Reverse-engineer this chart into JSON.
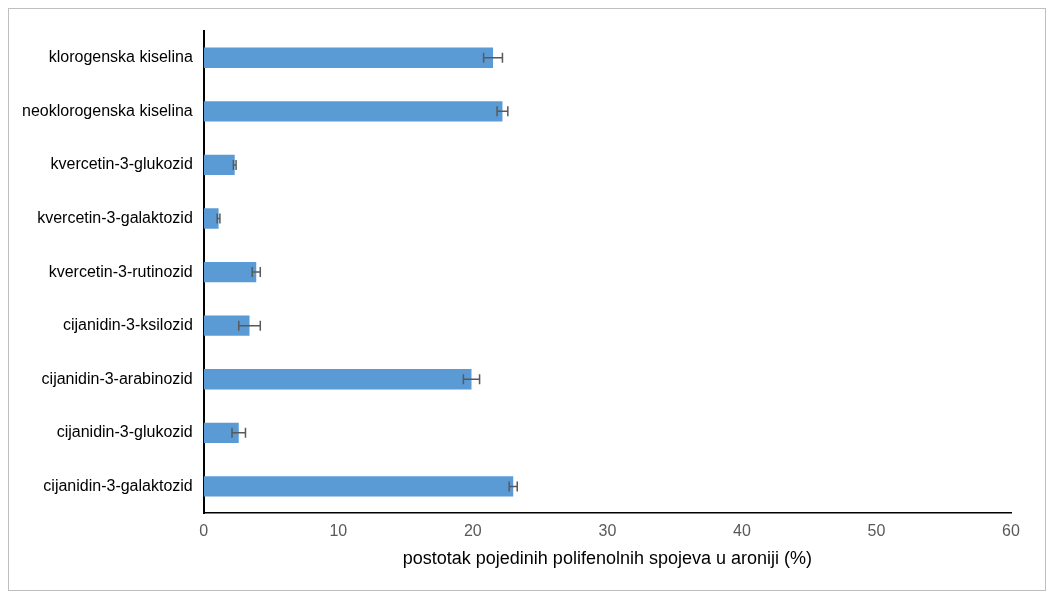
{
  "chart_data": {
    "type": "bar",
    "orientation": "horizontal",
    "xlabel": "postotak pojedinih polifenolnih spojeva u aroniji (%)",
    "categories": [
      "klorogenska kiselina",
      "neoklorogenska kiselina",
      "kvercetin-3-glukozid",
      "kvercetin-3-galaktozid",
      "kvercetin-3-rutinozid",
      "cijanidin-3-ksilozid",
      "cijanidin-3-arabinozid",
      "cijanidin-3-glukozid",
      "cijanidin-3-galaktozid"
    ],
    "values": [
      21.5,
      22.2,
      2.3,
      1.1,
      3.9,
      3.4,
      19.9,
      2.6,
      23.0
    ],
    "errors": [
      0.7,
      0.4,
      0.1,
      0.1,
      0.3,
      0.8,
      0.6,
      0.5,
      0.3
    ],
    "color": "#5b9bd5",
    "xlim": [
      0,
      60
    ],
    "xticks": [
      0,
      10,
      20,
      30,
      40,
      50,
      60
    ],
    "grid": false,
    "legend": false
  }
}
